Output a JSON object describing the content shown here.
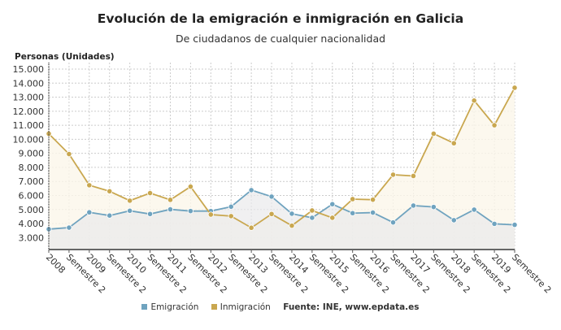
{
  "chart_data": {
    "type": "line",
    "title": "Evolución de la emigración e inmigración en Galicia",
    "subtitle": "De ciudadanos de cualquier nacionalidad",
    "ylabel": "Personas (Unidades)",
    "xlabel": "",
    "ylim": [
      2150,
      15000
    ],
    "yticks": [
      "3.000",
      "4.000",
      "5.000",
      "6.000",
      "7.000",
      "8.000",
      "9.000",
      "10.000",
      "11.000",
      "12.000",
      "13.000",
      "14.000",
      "15.000"
    ],
    "ytick_values": [
      3000,
      4000,
      5000,
      6000,
      7000,
      8000,
      9000,
      10000,
      11000,
      12000,
      13000,
      14000,
      15000
    ],
    "grid": true,
    "legend_position": "bottom",
    "categories": [
      "2008",
      "Semestre 2",
      "2009",
      "Semestre 2",
      "2010",
      "Semestre 2",
      "2011",
      "Semestre 2",
      "2012",
      "Semestre 2",
      "2013",
      "Semestre 2",
      "2014",
      "Semestre 2",
      "2015",
      "Semestre 2",
      "2016",
      "Semestre 2",
      "2017",
      "Semestre 2",
      "2018",
      "Semestre 2",
      "2019",
      "Semestre 2"
    ],
    "series": [
      {
        "name": "Emigración",
        "color": "#6fa3bf",
        "values": [
          3600,
          3710,
          4800,
          4570,
          4910,
          4680,
          5010,
          4890,
          4890,
          5200,
          6380,
          5920,
          4700,
          4410,
          5380,
          4740,
          4780,
          4080,
          5280,
          5180,
          4240,
          4990,
          3980,
          3910
        ]
      },
      {
        "name": "Inmigración",
        "color": "#c9a74f",
        "values": [
          10400,
          8950,
          6730,
          6300,
          5630,
          6170,
          5690,
          6630,
          4640,
          4530,
          3700,
          4680,
          3850,
          4930,
          4410,
          5740,
          5700,
          7480,
          7390,
          10400,
          9720,
          12760,
          11000,
          13670
        ]
      }
    ],
    "source": "Fuente: INE, www.epdata.es"
  }
}
